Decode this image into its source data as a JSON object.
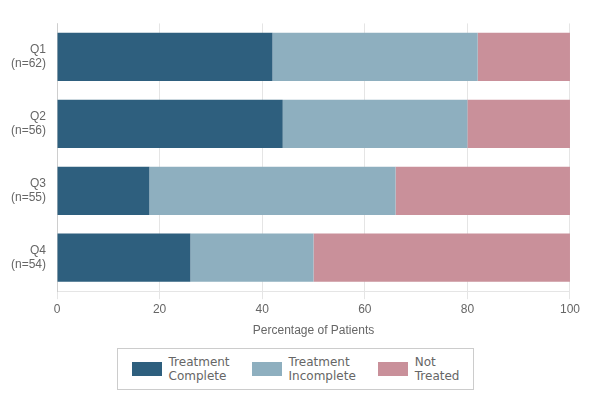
{
  "chart_data": {
    "type": "bar",
    "orientation": "horizontal",
    "stacked": true,
    "categories": [
      "Q1\n(n=62)",
      "Q2\n(n=56)",
      "Q3\n(n=55)",
      "Q4\n(n=54)"
    ],
    "series": [
      {
        "name": "Treatment\nComplete",
        "color": "#2e5f7e",
        "values": [
          42,
          44,
          18,
          26
        ]
      },
      {
        "name": "Treatment\nIncomplete",
        "color": "#8eafbf",
        "values": [
          40,
          36,
          48,
          24
        ]
      },
      {
        "name": "Not\nTreated",
        "color": "#c9909a",
        "values": [
          18,
          20,
          34,
          50
        ]
      }
    ],
    "xlabel": "Percentage of Patients",
    "xlim": [
      0,
      100
    ],
    "xticks": [
      0,
      20,
      40,
      60,
      80,
      100
    ],
    "grid": true,
    "legend": "bottom"
  }
}
